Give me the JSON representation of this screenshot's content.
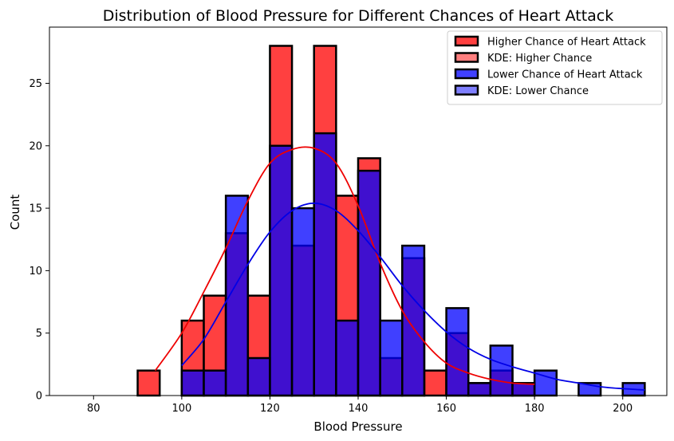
{
  "chart_data": {
    "type": "bar",
    "title": "Distribution of Blood Pressure for Different Chances of Heart Attack",
    "xlabel": "Blood Pressure",
    "ylabel": "Count",
    "xlim": [
      70,
      210
    ],
    "ylim": [
      0,
      29.5
    ],
    "xticks": [
      80,
      100,
      120,
      140,
      160,
      180,
      200
    ],
    "yticks": [
      0,
      5,
      10,
      15,
      20,
      25
    ],
    "grid": false,
    "legend_position": "top-right",
    "colors": {
      "higher_fill": "#ff0000",
      "higher_fill_opacity": 0.75,
      "lower_fill": "#0000ff",
      "lower_fill_opacity": 0.75,
      "edge": "#000000",
      "higher_kde": "#ee0000",
      "lower_kde": "#0000e6"
    },
    "legend": [
      {
        "label": "Higher Chance of Heart Attack",
        "color": "#ff0000",
        "opacity": 0.75
      },
      {
        "label": "KDE: Higher Chance",
        "color": "#ff0000",
        "opacity": 0.5
      },
      {
        "label": "Lower Chance of Heart Attack",
        "color": "#0000ff",
        "opacity": 0.75
      },
      {
        "label": "KDE: Lower Chance",
        "color": "#0000ff",
        "opacity": 0.5
      }
    ],
    "series": [
      {
        "name": "Higher Chance of Heart Attack",
        "bin_edges": [
          75,
          80,
          85,
          90,
          95,
          100,
          105,
          110,
          115,
          120,
          125,
          130,
          135,
          140,
          145,
          150,
          155,
          160,
          165,
          170,
          175,
          180
        ],
        "counts": [
          0,
          0,
          0,
          2,
          0,
          6,
          8,
          13,
          8,
          28,
          12,
          28,
          16,
          19,
          3,
          11,
          2,
          5,
          1,
          2,
          1
        ]
      },
      {
        "name": "Lower Chance of Heart Attack",
        "bin_edges": [
          100,
          105,
          110,
          115,
          120,
          125,
          130,
          135,
          140,
          145,
          150,
          155,
          160,
          165,
          170,
          175,
          180,
          185,
          190,
          195,
          200,
          205
        ],
        "counts": [
          2,
          2,
          16,
          3,
          20,
          15,
          21,
          6,
          18,
          6,
          12,
          0,
          7,
          1,
          4,
          1,
          2,
          0,
          1,
          0,
          1
        ]
      }
    ],
    "kde": [
      {
        "name": "KDE: Higher Chance",
        "x": [
          94,
          100,
          105,
          110,
          115,
          120,
          125,
          130,
          135,
          140,
          145,
          150,
          155,
          160,
          165,
          170,
          175,
          180
        ],
        "y": [
          2.0,
          5.0,
          8.3,
          11.8,
          15.6,
          18.6,
          19.7,
          19.8,
          18.6,
          15.2,
          10.6,
          6.8,
          4.3,
          2.6,
          1.8,
          1.3,
          1.0,
          0.9
        ]
      },
      {
        "name": "KDE: Lower Chance",
        "x": [
          100,
          105,
          110,
          115,
          120,
          125,
          130,
          135,
          140,
          145,
          150,
          155,
          160,
          165,
          170,
          175,
          180,
          185,
          190,
          195,
          200,
          205
        ],
        "y": [
          2.4,
          4.5,
          7.5,
          10.5,
          13.1,
          14.8,
          15.4,
          14.8,
          13.2,
          11.1,
          8.8,
          6.8,
          5.1,
          3.8,
          2.9,
          2.3,
          1.8,
          1.3,
          1.0,
          0.7,
          0.55,
          0.45
        ]
      }
    ]
  }
}
